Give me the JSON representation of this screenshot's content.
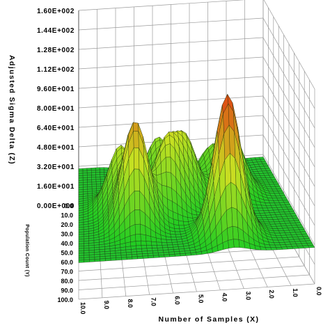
{
  "chart_data": {
    "type": "surface3d",
    "title": "",
    "zlabel": "Adjusted Sigma Delta (Z)",
    "xlabel": "Number of Samples (X)",
    "ylabel": "Population Count (Y)",
    "zlim": [
      0,
      160
    ],
    "xlim": [
      0,
      10
    ],
    "ylim": [
      0,
      100
    ],
    "z_ticks": [
      "0.00E+000",
      "1.60E+001",
      "3.20E+001",
      "4.80E+001",
      "6.40E+001",
      "8.00E+001",
      "9.60E+001",
      "1.12E+002",
      "1.28E+002",
      "1.44E+002",
      "1.60E+002"
    ],
    "x_ticks": [
      "10.0",
      "9.0",
      "8.0",
      "7.0",
      "6.0",
      "5.0",
      "4.0",
      "3.0",
      "2.0",
      "1.0",
      "0.0"
    ],
    "y_ticks": [
      "0.0",
      "10.0",
      "20.0",
      "30.0",
      "40.0",
      "50.0",
      "60.0",
      "70.0",
      "80.0",
      "90.0",
      "100.0"
    ],
    "grid": true,
    "colormap": {
      "low": "#2233cc",
      "mid": "#22cc22",
      "high": "#dd2200"
    },
    "baseline_z": 30,
    "peaks": [
      {
        "x": 3.4,
        "y": 80,
        "z": 145
      },
      {
        "x": 7.4,
        "y": 65,
        "z": 115
      },
      {
        "x": 5.8,
        "y": 50,
        "z": 85
      },
      {
        "x": 8.0,
        "y": 45,
        "z": 80
      },
      {
        "x": 4.8,
        "y": 40,
        "z": 78
      },
      {
        "x": 2.4,
        "y": 35,
        "z": 75
      },
      {
        "x": 6.0,
        "y": 25,
        "z": 70
      },
      {
        "x": 3.2,
        "y": 20,
        "z": 60
      }
    ],
    "troughs": [
      {
        "x": 2.8,
        "y": 8,
        "z": 0
      },
      {
        "x": 6.8,
        "y": 5,
        "z": 10
      }
    ]
  }
}
